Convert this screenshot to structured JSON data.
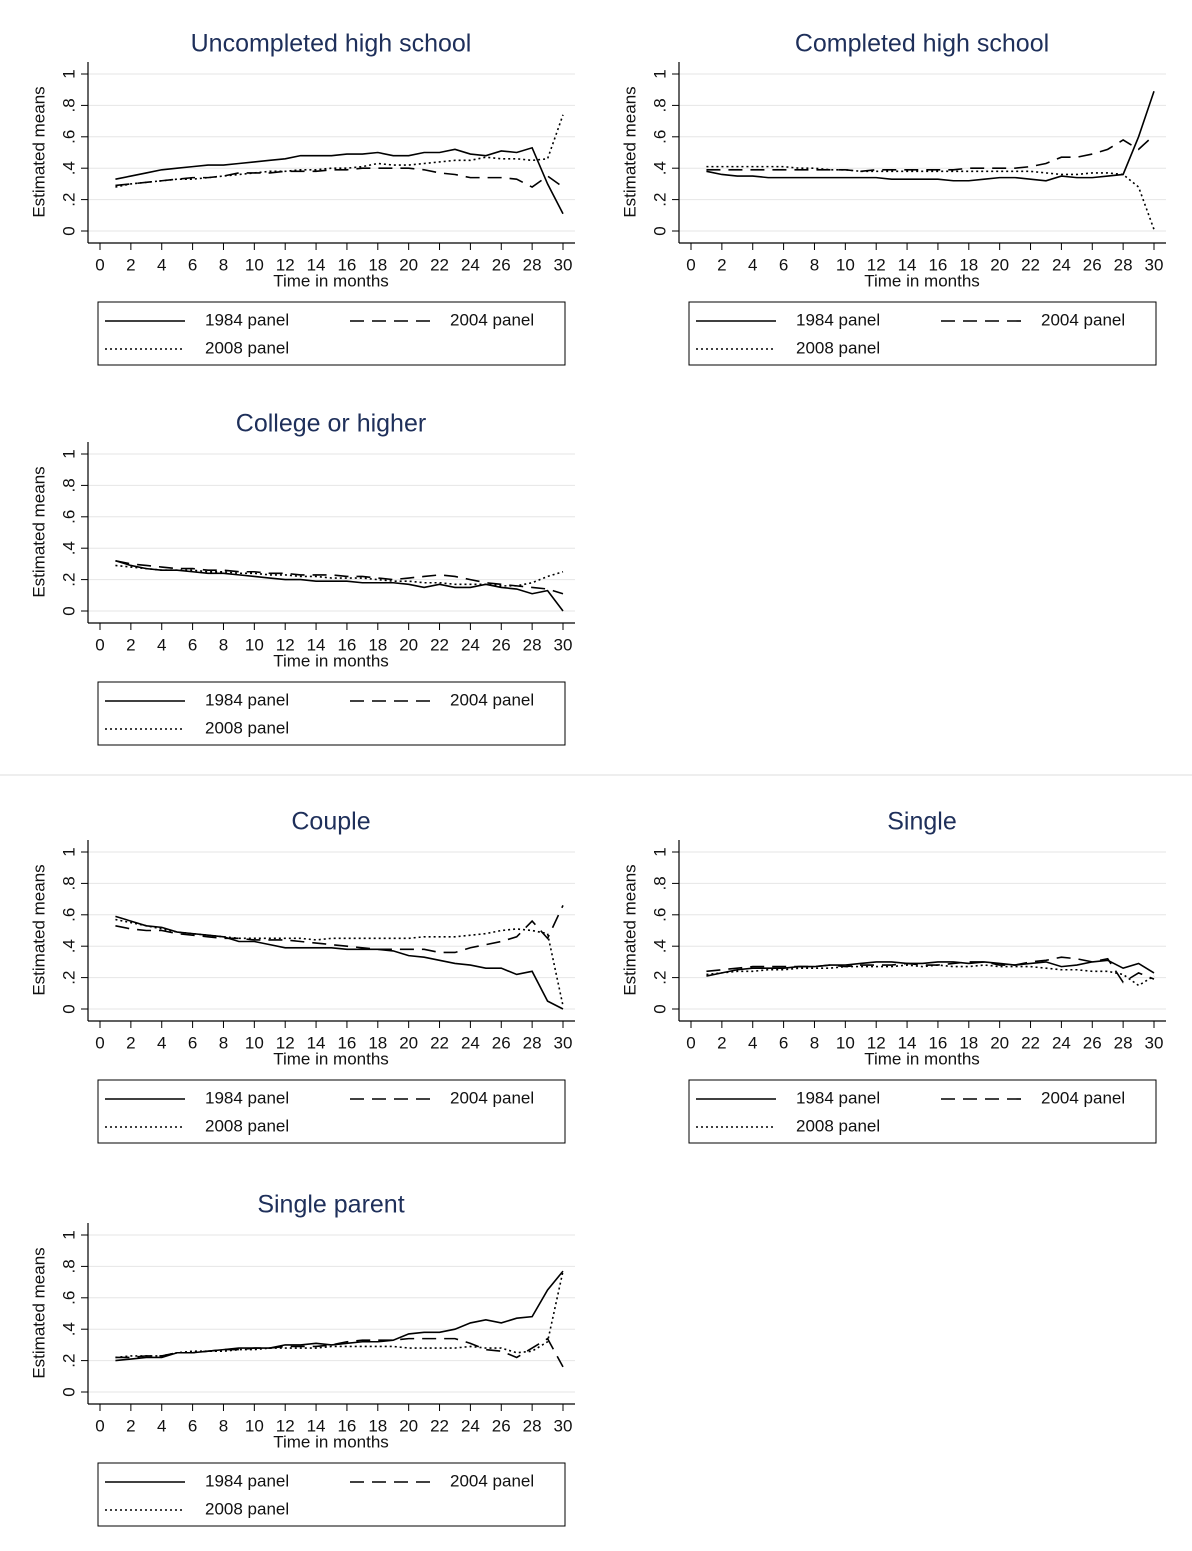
{
  "chart_data": [
    {
      "type": "line",
      "title": "Uncompleted high school",
      "x_label": "Time in months",
      "y_label": "Estimated means",
      "x": [
        1,
        2,
        3,
        4,
        5,
        6,
        7,
        8,
        9,
        10,
        11,
        12,
        13,
        14,
        15,
        16,
        17,
        18,
        19,
        20,
        21,
        22,
        23,
        24,
        25,
        26,
        27,
        28,
        29,
        30
      ],
      "xlim": [
        0,
        30
      ],
      "xticks": [
        0,
        2,
        4,
        6,
        8,
        10,
        12,
        14,
        16,
        18,
        20,
        22,
        24,
        26,
        28,
        30
      ],
      "ylim": [
        0,
        1
      ],
      "yticks": [
        0,
        {
          "value": 0.2,
          "label": ".2"
        },
        {
          "value": 0.4,
          "label": ".4"
        },
        {
          "value": 0.6,
          "label": ".6"
        },
        {
          "value": 0.8,
          "label": ".8"
        },
        1
      ],
      "grid": true,
      "series": [
        {
          "name": "1984 panel",
          "color": "#000000",
          "dash": "solid",
          "values": [
            0.33,
            0.35,
            0.37,
            0.39,
            0.4,
            0.41,
            0.42,
            0.42,
            0.43,
            0.44,
            0.45,
            0.46,
            0.48,
            0.48,
            0.48,
            0.49,
            0.49,
            0.5,
            0.48,
            0.48,
            0.5,
            0.5,
            0.52,
            0.49,
            0.48,
            0.51,
            0.5,
            0.53,
            0.3,
            0.11
          ]
        },
        {
          "name": "2004 panel",
          "color": "#000000",
          "dash": "dashed",
          "values": [
            0.29,
            0.3,
            0.31,
            0.32,
            0.33,
            0.34,
            0.34,
            0.35,
            0.37,
            0.37,
            0.37,
            0.38,
            0.38,
            0.38,
            0.39,
            0.39,
            0.4,
            0.4,
            0.4,
            0.4,
            0.39,
            0.37,
            0.36,
            0.34,
            0.34,
            0.34,
            0.33,
            0.28,
            0.35,
            0.28
          ]
        },
        {
          "name": "2008 panel",
          "color": "#000000",
          "dash": "dotted",
          "values": [
            0.28,
            0.3,
            0.31,
            0.32,
            0.33,
            0.33,
            0.34,
            0.35,
            0.36,
            0.37,
            0.38,
            0.38,
            0.39,
            0.39,
            0.4,
            0.4,
            0.41,
            0.43,
            0.42,
            0.42,
            0.43,
            0.44,
            0.45,
            0.45,
            0.47,
            0.46,
            0.46,
            0.45,
            0.46,
            0.74
          ]
        }
      ]
    },
    {
      "type": "line",
      "title": "Completed high school",
      "x_label": "Time in months",
      "y_label": "Estimated means",
      "x": [
        1,
        2,
        3,
        4,
        5,
        6,
        7,
        8,
        9,
        10,
        11,
        12,
        13,
        14,
        15,
        16,
        17,
        18,
        19,
        20,
        21,
        22,
        23,
        24,
        25,
        26,
        27,
        28,
        29,
        30
      ],
      "xlim": [
        0,
        30
      ],
      "xticks": [
        0,
        2,
        4,
        6,
        8,
        10,
        12,
        14,
        16,
        18,
        20,
        22,
        24,
        26,
        28,
        30
      ],
      "ylim": [
        0,
        1
      ],
      "yticks": [
        0,
        {
          "value": 0.2,
          "label": ".2"
        },
        {
          "value": 0.4,
          "label": ".4"
        },
        {
          "value": 0.6,
          "label": ".6"
        },
        {
          "value": 0.8,
          "label": ".8"
        },
        1
      ],
      "grid": true,
      "series": [
        {
          "name": "1984 panel",
          "color": "#000000",
          "dash": "solid",
          "values": [
            0.38,
            0.36,
            0.35,
            0.35,
            0.34,
            0.34,
            0.34,
            0.34,
            0.34,
            0.34,
            0.34,
            0.34,
            0.33,
            0.33,
            0.33,
            0.33,
            0.32,
            0.32,
            0.33,
            0.34,
            0.34,
            0.33,
            0.32,
            0.35,
            0.34,
            0.34,
            0.35,
            0.36,
            0.6,
            0.89
          ]
        },
        {
          "name": "2004 panel",
          "color": "#000000",
          "dash": "dashed",
          "values": [
            0.39,
            0.39,
            0.39,
            0.39,
            0.39,
            0.39,
            0.39,
            0.39,
            0.39,
            0.39,
            0.38,
            0.39,
            0.39,
            0.39,
            0.39,
            0.39,
            0.39,
            0.4,
            0.4,
            0.4,
            0.4,
            0.41,
            0.43,
            0.47,
            0.47,
            0.49,
            0.52,
            0.58,
            0.52,
            0.61
          ]
        },
        {
          "name": "2008 panel",
          "color": "#000000",
          "dash": "dotted",
          "values": [
            0.41,
            0.41,
            0.41,
            0.41,
            0.41,
            0.41,
            0.4,
            0.4,
            0.39,
            0.39,
            0.38,
            0.38,
            0.38,
            0.38,
            0.38,
            0.38,
            0.38,
            0.38,
            0.38,
            0.38,
            0.38,
            0.38,
            0.37,
            0.36,
            0.36,
            0.37,
            0.37,
            0.36,
            0.28,
            0.01
          ]
        }
      ]
    },
    {
      "type": "line",
      "title": "College or higher",
      "x_label": "Time in months",
      "y_label": "Estimated means",
      "x": [
        1,
        2,
        3,
        4,
        5,
        6,
        7,
        8,
        9,
        10,
        11,
        12,
        13,
        14,
        15,
        16,
        17,
        18,
        19,
        20,
        21,
        22,
        23,
        24,
        25,
        26,
        27,
        28,
        29,
        30
      ],
      "xlim": [
        0,
        30
      ],
      "xticks": [
        0,
        2,
        4,
        6,
        8,
        10,
        12,
        14,
        16,
        18,
        20,
        22,
        24,
        26,
        28,
        30
      ],
      "ylim": [
        0,
        1
      ],
      "yticks": [
        0,
        {
          "value": 0.2,
          "label": ".2"
        },
        {
          "value": 0.4,
          "label": ".4"
        },
        {
          "value": 0.6,
          "label": ".6"
        },
        {
          "value": 0.8,
          "label": ".8"
        },
        1
      ],
      "grid": true,
      "series": [
        {
          "name": "1984 panel",
          "color": "#000000",
          "dash": "solid",
          "values": [
            0.32,
            0.29,
            0.27,
            0.26,
            0.26,
            0.25,
            0.24,
            0.24,
            0.23,
            0.22,
            0.21,
            0.2,
            0.2,
            0.19,
            0.19,
            0.19,
            0.18,
            0.18,
            0.18,
            0.17,
            0.15,
            0.17,
            0.15,
            0.15,
            0.17,
            0.15,
            0.14,
            0.11,
            0.13,
            0.0
          ]
        },
        {
          "name": "2004 panel",
          "color": "#000000",
          "dash": "dashed",
          "values": [
            0.32,
            0.3,
            0.29,
            0.28,
            0.27,
            0.27,
            0.26,
            0.26,
            0.25,
            0.25,
            0.24,
            0.24,
            0.23,
            0.23,
            0.23,
            0.22,
            0.22,
            0.21,
            0.2,
            0.21,
            0.22,
            0.23,
            0.22,
            0.2,
            0.18,
            0.17,
            0.16,
            0.15,
            0.14,
            0.11
          ]
        },
        {
          "name": "2008 panel",
          "color": "#000000",
          "dash": "dotted",
          "values": [
            0.29,
            0.28,
            0.27,
            0.26,
            0.26,
            0.26,
            0.25,
            0.25,
            0.24,
            0.24,
            0.23,
            0.23,
            0.22,
            0.22,
            0.21,
            0.21,
            0.21,
            0.2,
            0.19,
            0.19,
            0.18,
            0.18,
            0.17,
            0.17,
            0.17,
            0.16,
            0.16,
            0.18,
            0.22,
            0.25
          ]
        }
      ]
    },
    {
      "type": "line",
      "title": "Couple",
      "x_label": "Time in months",
      "y_label": "Estimated means",
      "x": [
        1,
        2,
        3,
        4,
        5,
        6,
        7,
        8,
        9,
        10,
        11,
        12,
        13,
        14,
        15,
        16,
        17,
        18,
        19,
        20,
        21,
        22,
        23,
        24,
        25,
        26,
        27,
        28,
        29,
        30
      ],
      "xlim": [
        0,
        30
      ],
      "xticks": [
        0,
        2,
        4,
        6,
        8,
        10,
        12,
        14,
        16,
        18,
        20,
        22,
        24,
        26,
        28,
        30
      ],
      "ylim": [
        0,
        1
      ],
      "yticks": [
        0,
        {
          "value": 0.2,
          "label": ".2"
        },
        {
          "value": 0.4,
          "label": ".4"
        },
        {
          "value": 0.6,
          "label": ".6"
        },
        {
          "value": 0.8,
          "label": ".8"
        },
        1
      ],
      "grid": true,
      "series": [
        {
          "name": "1984 panel",
          "color": "#000000",
          "dash": "solid",
          "values": [
            0.59,
            0.56,
            0.53,
            0.52,
            0.49,
            0.48,
            0.47,
            0.46,
            0.43,
            0.43,
            0.41,
            0.39,
            0.39,
            0.39,
            0.39,
            0.38,
            0.38,
            0.38,
            0.37,
            0.34,
            0.33,
            0.31,
            0.29,
            0.28,
            0.26,
            0.26,
            0.22,
            0.24,
            0.05,
            0.0
          ]
        },
        {
          "name": "2004 panel",
          "color": "#000000",
          "dash": "dashed",
          "values": [
            0.53,
            0.51,
            0.5,
            0.5,
            0.48,
            0.47,
            0.46,
            0.45,
            0.45,
            0.44,
            0.44,
            0.44,
            0.43,
            0.42,
            0.41,
            0.4,
            0.39,
            0.38,
            0.38,
            0.38,
            0.38,
            0.36,
            0.36,
            0.39,
            0.41,
            0.43,
            0.46,
            0.56,
            0.45,
            0.66
          ]
        },
        {
          "name": "2008 panel",
          "color": "#000000",
          "dash": "dotted",
          "values": [
            0.57,
            0.55,
            0.53,
            0.51,
            0.49,
            0.48,
            0.47,
            0.46,
            0.45,
            0.45,
            0.45,
            0.45,
            0.45,
            0.44,
            0.45,
            0.45,
            0.45,
            0.45,
            0.45,
            0.45,
            0.46,
            0.46,
            0.46,
            0.47,
            0.48,
            0.5,
            0.51,
            0.5,
            0.48,
            0.02
          ]
        }
      ]
    },
    {
      "type": "line",
      "title": "Single",
      "x_label": "Time in months",
      "y_label": "Estimated means",
      "x": [
        1,
        2,
        3,
        4,
        5,
        6,
        7,
        8,
        9,
        10,
        11,
        12,
        13,
        14,
        15,
        16,
        17,
        18,
        19,
        20,
        21,
        22,
        23,
        24,
        25,
        26,
        27,
        28,
        29,
        30
      ],
      "xlim": [
        0,
        30
      ],
      "xticks": [
        0,
        2,
        4,
        6,
        8,
        10,
        12,
        14,
        16,
        18,
        20,
        22,
        24,
        26,
        28,
        30
      ],
      "ylim": [
        0,
        1
      ],
      "yticks": [
        0,
        {
          "value": 0.2,
          "label": ".2"
        },
        {
          "value": 0.4,
          "label": ".4"
        },
        {
          "value": 0.6,
          "label": ".6"
        },
        {
          "value": 0.8,
          "label": ".8"
        },
        1
      ],
      "grid": true,
      "series": [
        {
          "name": "1984 panel",
          "color": "#000000",
          "dash": "solid",
          "values": [
            0.21,
            0.23,
            0.25,
            0.26,
            0.26,
            0.26,
            0.27,
            0.27,
            0.28,
            0.28,
            0.29,
            0.3,
            0.3,
            0.29,
            0.29,
            0.3,
            0.3,
            0.29,
            0.3,
            0.29,
            0.28,
            0.29,
            0.3,
            0.27,
            0.28,
            0.3,
            0.31,
            0.26,
            0.29,
            0.23
          ]
        },
        {
          "name": "2004 panel",
          "color": "#000000",
          "dash": "dashed",
          "values": [
            0.24,
            0.25,
            0.26,
            0.27,
            0.27,
            0.27,
            0.27,
            0.27,
            0.28,
            0.27,
            0.28,
            0.28,
            0.28,
            0.29,
            0.28,
            0.28,
            0.29,
            0.3,
            0.3,
            0.28,
            0.28,
            0.3,
            0.31,
            0.33,
            0.32,
            0.3,
            0.32,
            0.17,
            0.23,
            0.19
          ]
        },
        {
          "name": "2008 panel",
          "color": "#000000",
          "dash": "dotted",
          "values": [
            0.22,
            0.23,
            0.24,
            0.24,
            0.25,
            0.25,
            0.26,
            0.26,
            0.26,
            0.27,
            0.27,
            0.27,
            0.27,
            0.28,
            0.27,
            0.28,
            0.27,
            0.27,
            0.28,
            0.27,
            0.27,
            0.27,
            0.26,
            0.25,
            0.25,
            0.24,
            0.24,
            0.22,
            0.15,
            0.21
          ]
        }
      ]
    },
    {
      "type": "line",
      "title": "Single parent",
      "x_label": "Time in months",
      "y_label": "Estimated means",
      "x": [
        1,
        2,
        3,
        4,
        5,
        6,
        7,
        8,
        9,
        10,
        11,
        12,
        13,
        14,
        15,
        16,
        17,
        18,
        19,
        20,
        21,
        22,
        23,
        24,
        25,
        26,
        27,
        28,
        29,
        30
      ],
      "xlim": [
        0,
        30
      ],
      "xticks": [
        0,
        2,
        4,
        6,
        8,
        10,
        12,
        14,
        16,
        18,
        20,
        22,
        24,
        26,
        28,
        30
      ],
      "ylim": [
        0,
        1
      ],
      "yticks": [
        0,
        {
          "value": 0.2,
          "label": ".2"
        },
        {
          "value": 0.4,
          "label": ".4"
        },
        {
          "value": 0.6,
          "label": ".6"
        },
        {
          "value": 0.8,
          "label": ".8"
        },
        1
      ],
      "grid": true,
      "series": [
        {
          "name": "1984 panel",
          "color": "#000000",
          "dash": "solid",
          "values": [
            0.2,
            0.21,
            0.22,
            0.22,
            0.25,
            0.25,
            0.26,
            0.27,
            0.28,
            0.28,
            0.28,
            0.3,
            0.3,
            0.31,
            0.3,
            0.31,
            0.32,
            0.32,
            0.33,
            0.37,
            0.38,
            0.38,
            0.4,
            0.44,
            0.46,
            0.44,
            0.47,
            0.48,
            0.65,
            0.77
          ]
        },
        {
          "name": "2004 panel",
          "color": "#000000",
          "dash": "dashed",
          "values": [
            0.22,
            0.22,
            0.23,
            0.23,
            0.25,
            0.25,
            0.26,
            0.27,
            0.27,
            0.28,
            0.28,
            0.29,
            0.29,
            0.29,
            0.3,
            0.32,
            0.33,
            0.33,
            0.33,
            0.34,
            0.34,
            0.34,
            0.34,
            0.31,
            0.27,
            0.26,
            0.22,
            0.28,
            0.34,
            0.16
          ]
        },
        {
          "name": "2008 panel",
          "color": "#000000",
          "dash": "dotted",
          "values": [
            0.22,
            0.23,
            0.23,
            0.23,
            0.25,
            0.26,
            0.26,
            0.26,
            0.27,
            0.27,
            0.28,
            0.28,
            0.28,
            0.28,
            0.29,
            0.29,
            0.29,
            0.29,
            0.29,
            0.28,
            0.28,
            0.28,
            0.28,
            0.29,
            0.28,
            0.28,
            0.25,
            0.26,
            0.32,
            0.77
          ]
        }
      ]
    }
  ]
}
